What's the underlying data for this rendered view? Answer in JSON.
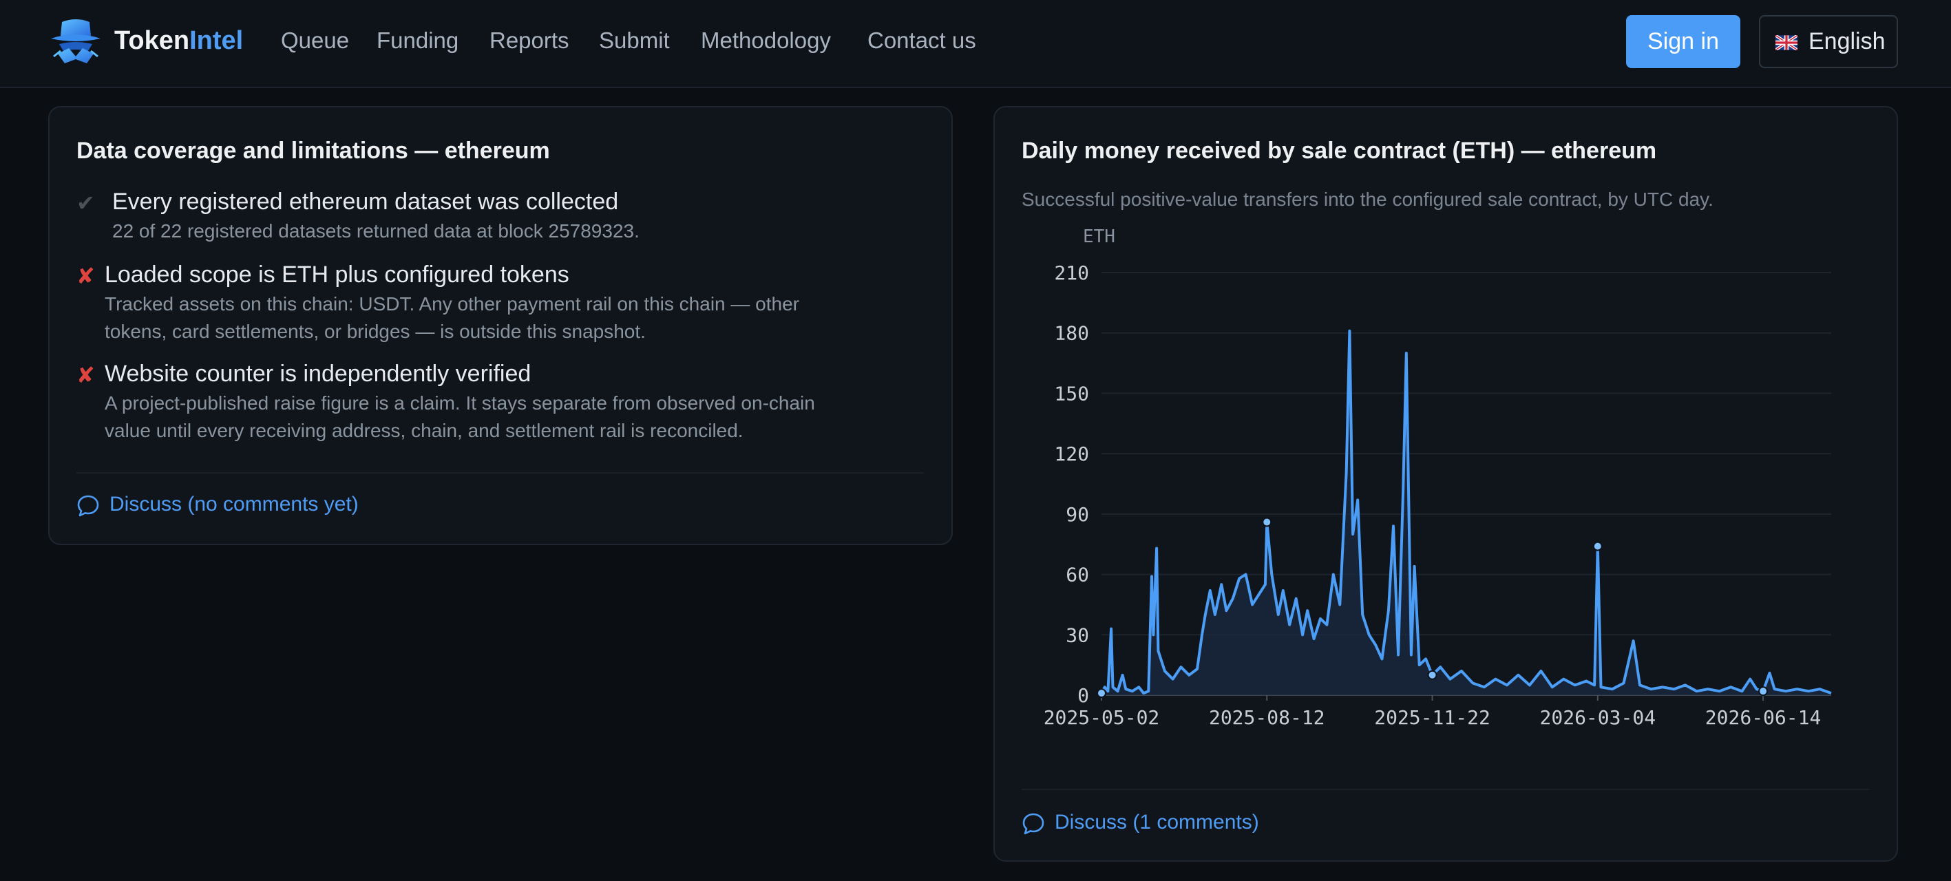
{
  "header": {
    "brand_token": "Token",
    "brand_intel": "Intel",
    "nav": [
      "Queue",
      "Funding",
      "Reports",
      "Submit",
      "Methodology",
      "Contact us"
    ],
    "signin_label": "Sign in",
    "language_label": "English",
    "language_flag_icon": "uk-flag-icon"
  },
  "coverage": {
    "title": "Data coverage and limitations — ethereum",
    "items": [
      {
        "status": "ok",
        "status_icon": "checkmark-icon",
        "heading": "Every registered ethereum dataset was collected",
        "detail_lines": [
          "22 of 22 registered datasets returned data at block 25789323."
        ]
      },
      {
        "status": "fail",
        "status_icon": "cross-icon",
        "heading": "Loaded scope is ETH plus configured tokens",
        "detail_lines": [
          "Tracked assets on this chain: USDT. Any other payment rail on this chain — other",
          "tokens, card settlements, or bridges — is outside this snapshot."
        ]
      },
      {
        "status": "fail",
        "status_icon": "cross-icon",
        "heading": "Website counter is independently verified",
        "detail_lines": [
          "A project-published raise figure is a claim. It stays separate from observed on-chain",
          "value until every receiving address, chain, and settlement rail is reconciled."
        ]
      }
    ],
    "discuss_label": "Discuss (no comments yet)"
  },
  "daily_chart": {
    "title": "Daily money received by sale contract (ETH) — ethereum",
    "subtitle": "Successful positive-value transfers into the configured sale contract, by UTC day.",
    "discuss_label": "Discuss (1 comments)"
  },
  "colors": {
    "accent": "#4a9cf6",
    "line": "#4b9df6",
    "fail": "#e0443e",
    "ok": "#4a5058",
    "background": "#0b0f14",
    "card": "#10151c"
  },
  "chart_data": {
    "type": "area",
    "title": "",
    "xlabel": "",
    "ylabel": "ETH",
    "ylim": [
      0,
      210
    ],
    "yticks": [
      0,
      30,
      60,
      90,
      120,
      150,
      180,
      210
    ],
    "xticks": [
      "2025-05-02",
      "2025-08-12",
      "2025-11-22",
      "2026-03-04",
      "2026-06-14"
    ],
    "x_range": [
      "2025-05-02",
      "2026-07-26"
    ],
    "grid": true,
    "legend": "none",
    "series": [
      {
        "values": [
          [
            "2025-05-02",
            1
          ],
          [
            "2025-05-04",
            4
          ],
          [
            "2025-05-06",
            2
          ],
          [
            "2025-05-08",
            33
          ],
          [
            "2025-05-09",
            4
          ],
          [
            "2025-05-12",
            2
          ],
          [
            "2025-05-15",
            10
          ],
          [
            "2025-05-17",
            3
          ],
          [
            "2025-05-21",
            2
          ],
          [
            "2025-05-25",
            4
          ],
          [
            "2025-05-28",
            1
          ],
          [
            "2025-05-31",
            2
          ],
          [
            "2025-06-02",
            59
          ],
          [
            "2025-06-03",
            30
          ],
          [
            "2025-06-05",
            73
          ],
          [
            "2025-06-06",
            22
          ],
          [
            "2025-06-10",
            12
          ],
          [
            "2025-06-15",
            8
          ],
          [
            "2025-06-20",
            14
          ],
          [
            "2025-06-25",
            10
          ],
          [
            "2025-06-30",
            13
          ],
          [
            "2025-07-03",
            30
          ],
          [
            "2025-07-05",
            40
          ],
          [
            "2025-07-08",
            52
          ],
          [
            "2025-07-11",
            40
          ],
          [
            "2025-07-15",
            55
          ],
          [
            "2025-07-18",
            42
          ],
          [
            "2025-07-22",
            48
          ],
          [
            "2025-07-26",
            58
          ],
          [
            "2025-07-30",
            60
          ],
          [
            "2025-08-03",
            45
          ],
          [
            "2025-08-07",
            50
          ],
          [
            "2025-08-11",
            55
          ],
          [
            "2025-08-12",
            86
          ],
          [
            "2025-08-15",
            60
          ],
          [
            "2025-08-19",
            40
          ],
          [
            "2025-08-22",
            52
          ],
          [
            "2025-08-26",
            35
          ],
          [
            "2025-08-30",
            48
          ],
          [
            "2025-09-03",
            30
          ],
          [
            "2025-09-06",
            42
          ],
          [
            "2025-09-10",
            28
          ],
          [
            "2025-09-14",
            38
          ],
          [
            "2025-09-18",
            35
          ],
          [
            "2025-09-22",
            60
          ],
          [
            "2025-09-26",
            45
          ],
          [
            "2025-09-30",
            111
          ],
          [
            "2025-10-02",
            181
          ],
          [
            "2025-10-04",
            80
          ],
          [
            "2025-10-07",
            97
          ],
          [
            "2025-10-10",
            40
          ],
          [
            "2025-10-14",
            30
          ],
          [
            "2025-10-18",
            25
          ],
          [
            "2025-10-22",
            18
          ],
          [
            "2025-10-26",
            42
          ],
          [
            "2025-10-29",
            84
          ],
          [
            "2025-11-01",
            20
          ],
          [
            "2025-11-04",
            101
          ],
          [
            "2025-11-06",
            170
          ],
          [
            "2025-11-09",
            20
          ],
          [
            "2025-11-11",
            64
          ],
          [
            "2025-11-14",
            15
          ],
          [
            "2025-11-18",
            18
          ],
          [
            "2025-11-22",
            10
          ],
          [
            "2025-11-27",
            14
          ],
          [
            "2025-12-03",
            8
          ],
          [
            "2025-12-10",
            12
          ],
          [
            "2025-12-17",
            6
          ],
          [
            "2025-12-24",
            4
          ],
          [
            "2025-12-31",
            8
          ],
          [
            "2026-01-07",
            5
          ],
          [
            "2026-01-14",
            10
          ],
          [
            "2026-01-21",
            5
          ],
          [
            "2026-01-28",
            12
          ],
          [
            "2026-02-04",
            4
          ],
          [
            "2026-02-11",
            8
          ],
          [
            "2026-02-18",
            5
          ],
          [
            "2026-02-25",
            7
          ],
          [
            "2026-03-02",
            5
          ],
          [
            "2026-03-04",
            74
          ],
          [
            "2026-03-06",
            4
          ],
          [
            "2026-03-13",
            3
          ],
          [
            "2026-03-20",
            6
          ],
          [
            "2026-03-26",
            27
          ],
          [
            "2026-03-30",
            5
          ],
          [
            "2026-04-06",
            3
          ],
          [
            "2026-04-13",
            4
          ],
          [
            "2026-04-20",
            3
          ],
          [
            "2026-04-27",
            5
          ],
          [
            "2026-05-04",
            2
          ],
          [
            "2026-05-11",
            3
          ],
          [
            "2026-05-18",
            2
          ],
          [
            "2026-05-25",
            4
          ],
          [
            "2026-06-01",
            2
          ],
          [
            "2026-06-06",
            8
          ],
          [
            "2026-06-10",
            3
          ],
          [
            "2026-06-14",
            2
          ],
          [
            "2026-06-18",
            11
          ],
          [
            "2026-06-21",
            3
          ],
          [
            "2026-06-28",
            2
          ],
          [
            "2026-07-05",
            3
          ],
          [
            "2026-07-12",
            2
          ],
          [
            "2026-07-19",
            3
          ],
          [
            "2026-07-26",
            1
          ]
        ]
      }
    ],
    "markers": [
      [
        "2025-05-02",
        1
      ],
      [
        "2025-08-12",
        86
      ],
      [
        "2025-11-22",
        10
      ],
      [
        "2026-03-04",
        74
      ],
      [
        "2026-06-14",
        2
      ]
    ]
  }
}
